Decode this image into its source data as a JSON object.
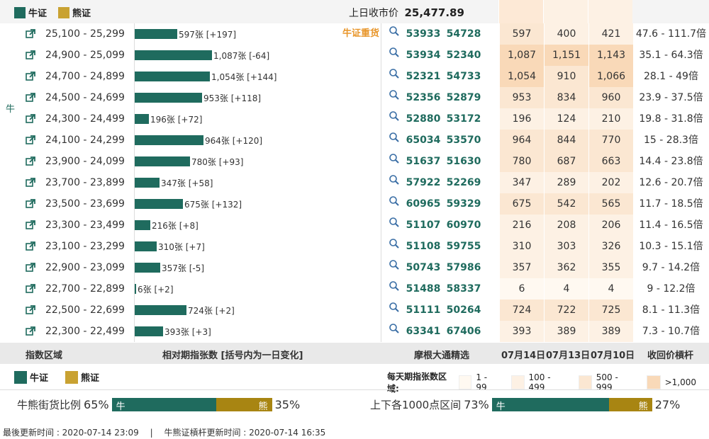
{
  "header": {
    "legend_bull": "牛证",
    "legend_bear": "熊证",
    "last_close_label": "上日收市价",
    "last_close_value": "25,477.89"
  },
  "side_label": "牛",
  "heavy_label": "牛证重货",
  "rows": [
    {
      "range": "25,100 - 25,299",
      "bar_pct": 0.1,
      "bar_label": "597张 [+197]",
      "code1": "53933",
      "code2": "54728",
      "d1": "597",
      "d2": "400",
      "d3": "421",
      "lev": "47.6 - 111.7倍"
    },
    {
      "range": "24,900 - 25,099",
      "bar_pct": 0.182,
      "bar_label": "1,087张 [-64]",
      "code1": "53934",
      "code2": "52340",
      "d1": "1,087",
      "d2": "1,151",
      "d3": "1,143",
      "lev": "35.1 - 64.3倍"
    },
    {
      "range": "24,700 - 24,899",
      "bar_pct": 0.176,
      "bar_label": "1,054张 [+144]",
      "code1": "52321",
      "code2": "54733",
      "d1": "1,054",
      "d2": "910",
      "d3": "1,066",
      "lev": "28.1 - 49倍"
    },
    {
      "range": "24,500 - 24,699",
      "bar_pct": 0.159,
      "bar_label": "953张 [+118]",
      "code1": "52356",
      "code2": "52879",
      "d1": "953",
      "d2": "834",
      "d3": "960",
      "lev": "23.9 - 37.5倍"
    },
    {
      "range": "24,300 - 24,499",
      "bar_pct": 0.033,
      "bar_label": "196张 [+72]",
      "code1": "52880",
      "code2": "53172",
      "d1": "196",
      "d2": "124",
      "d3": "210",
      "lev": "19.8 - 31.8倍"
    },
    {
      "range": "24,100 - 24,299",
      "bar_pct": 0.161,
      "bar_label": "964张 [+120]",
      "code1": "65034",
      "code2": "53570",
      "d1": "964",
      "d2": "844",
      "d3": "770",
      "lev": "15 - 28.3倍"
    },
    {
      "range": "23,900 - 24,099",
      "bar_pct": 0.13,
      "bar_label": "780张 [+93]",
      "code1": "51637",
      "code2": "51630",
      "d1": "780",
      "d2": "687",
      "d3": "663",
      "lev": "14.4 - 23.8倍"
    },
    {
      "range": "23,700 - 23,899",
      "bar_pct": 0.058,
      "bar_label": "347张 [+58]",
      "code1": "57922",
      "code2": "52269",
      "d1": "347",
      "d2": "289",
      "d3": "202",
      "lev": "12.6 - 20.7倍"
    },
    {
      "range": "23,500 - 23,699",
      "bar_pct": 0.113,
      "bar_label": "675张 [+132]",
      "code1": "60965",
      "code2": "59329",
      "d1": "675",
      "d2": "542",
      "d3": "565",
      "lev": "11.7 - 18.5倍"
    },
    {
      "range": "23,300 - 23,499",
      "bar_pct": 0.036,
      "bar_label": "216张 [+8]",
      "code1": "51107",
      "code2": "60970",
      "d1": "216",
      "d2": "208",
      "d3": "206",
      "lev": "11.4 - 16.5倍"
    },
    {
      "range": "23,100 - 23,299",
      "bar_pct": 0.052,
      "bar_label": "310张 [+7]",
      "code1": "51108",
      "code2": "59755",
      "d1": "310",
      "d2": "303",
      "d3": "326",
      "lev": "10.3 - 15.1倍"
    },
    {
      "range": "22,900 - 23,099",
      "bar_pct": 0.06,
      "bar_label": "357张 [-5]",
      "code1": "50743",
      "code2": "57986",
      "d1": "357",
      "d2": "362",
      "d3": "355",
      "lev": "9.7 - 14.2倍"
    },
    {
      "range": "22,700 - 22,899",
      "bar_pct": 0.001,
      "bar_label": "6张 [+2]",
      "code1": "51488",
      "code2": "58337",
      "d1": "6",
      "d2": "4",
      "d3": "4",
      "lev": "9 - 12.2倍"
    },
    {
      "range": "22,500 - 22,699",
      "bar_pct": 0.121,
      "bar_label": "724张 [+2]",
      "code1": "51111",
      "code2": "50264",
      "d1": "724",
      "d2": "722",
      "d3": "725",
      "lev": "8.1 - 11.3倍"
    },
    {
      "range": "22,300 - 22,499",
      "bar_pct": 0.066,
      "bar_label": "393张 [+3]",
      "code1": "63341",
      "code2": "67406",
      "d1": "393",
      "d2": "389",
      "d3": "389",
      "lev": "7.3 - 10.7倍"
    }
  ],
  "columns": {
    "index_range": "指数区域",
    "contracts": "相对期指张数 [括号内为一日变化]",
    "selection": "摩根大通精选",
    "date1": "07月14日",
    "date2": "07月13日",
    "date3": "07月10日",
    "leverage": "收回价槓杆"
  },
  "legend2": {
    "bull": "牛证",
    "bear": "熊证",
    "daily_title": "每天期指张数区域:",
    "ranges": [
      {
        "label": "1 - 99",
        "color": "#fff9f1"
      },
      {
        "label": "100 - 499",
        "color": "#fdf1e4"
      },
      {
        "label": "500 - 999",
        "color": "#fbe7d2"
      },
      {
        "label": ">1,000",
        "color": "#f9d9b8"
      }
    ]
  },
  "ratio_left": {
    "label": "牛熊街货比例",
    "bull_pct": "65%",
    "bull_fraction": 0.65,
    "bull": "牛",
    "bear": "熊",
    "bear_pct": "35%"
  },
  "ratio_right": {
    "label": "上下各1000点区间",
    "bull_pct": "73%",
    "bull_fraction": 0.73,
    "bull": "牛",
    "bear": "熊",
    "bear_pct": "27%"
  },
  "footnote": "最後更新时间 : 2020-07-14 23:09 　|　 牛熊证槓杆更新时间 : 2020-07-14 16:35",
  "colors": {
    "bull": "#1f6b5e",
    "bear": "#c9a232",
    "bear_dark": "#a88512",
    "heavy": "#e8962b"
  }
}
